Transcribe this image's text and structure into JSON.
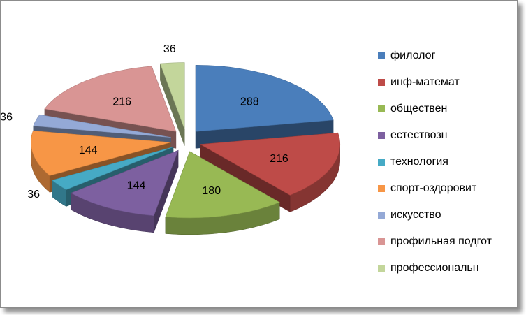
{
  "chart_data": {
    "type": "pie",
    "title": "",
    "style": "exploded-3d",
    "legend_position": "right",
    "categories": [
      "филолог",
      "инф-математ",
      "обществен",
      "естествозн",
      "технология",
      "спорт-оздоровит",
      "искусство",
      "профильная подгот",
      "профессиональн"
    ],
    "values": [
      288,
      216,
      180,
      144,
      36,
      144,
      36,
      216,
      36
    ],
    "data_labels": [
      "288",
      "216",
      "180",
      "144",
      "36",
      "144",
      "36",
      "216",
      "36"
    ],
    "colors": [
      "#4a7ebb",
      "#be4b48",
      "#98b954",
      "#7d60a0",
      "#46aac5",
      "#f79646",
      "#94a9d6",
      "#d99594",
      "#c3d69b"
    ]
  }
}
